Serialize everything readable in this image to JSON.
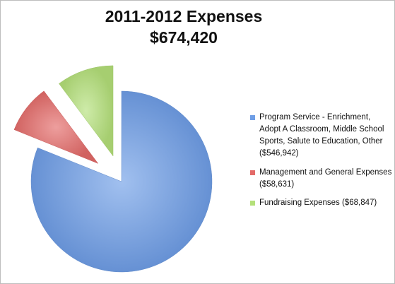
{
  "chart_data": {
    "type": "pie",
    "title": "2011-2012 Expenses",
    "subtitle": "$674,420",
    "exploded": true,
    "legend_position": "right",
    "slices": [
      {
        "label": "Program Service - Enrichment, Adopt A Classroom, Middle School Sports, Salute to Education, Other ($546,942)",
        "value": 546942,
        "color": "#6f9ee6"
      },
      {
        "label": "Management and General Expenses ($58,631)",
        "value": 58631,
        "color": "#e36a68"
      },
      {
        "label": "Fundraising Expenses ($68,847)",
        "value": 68847,
        "color": "#b4e07a"
      }
    ]
  }
}
